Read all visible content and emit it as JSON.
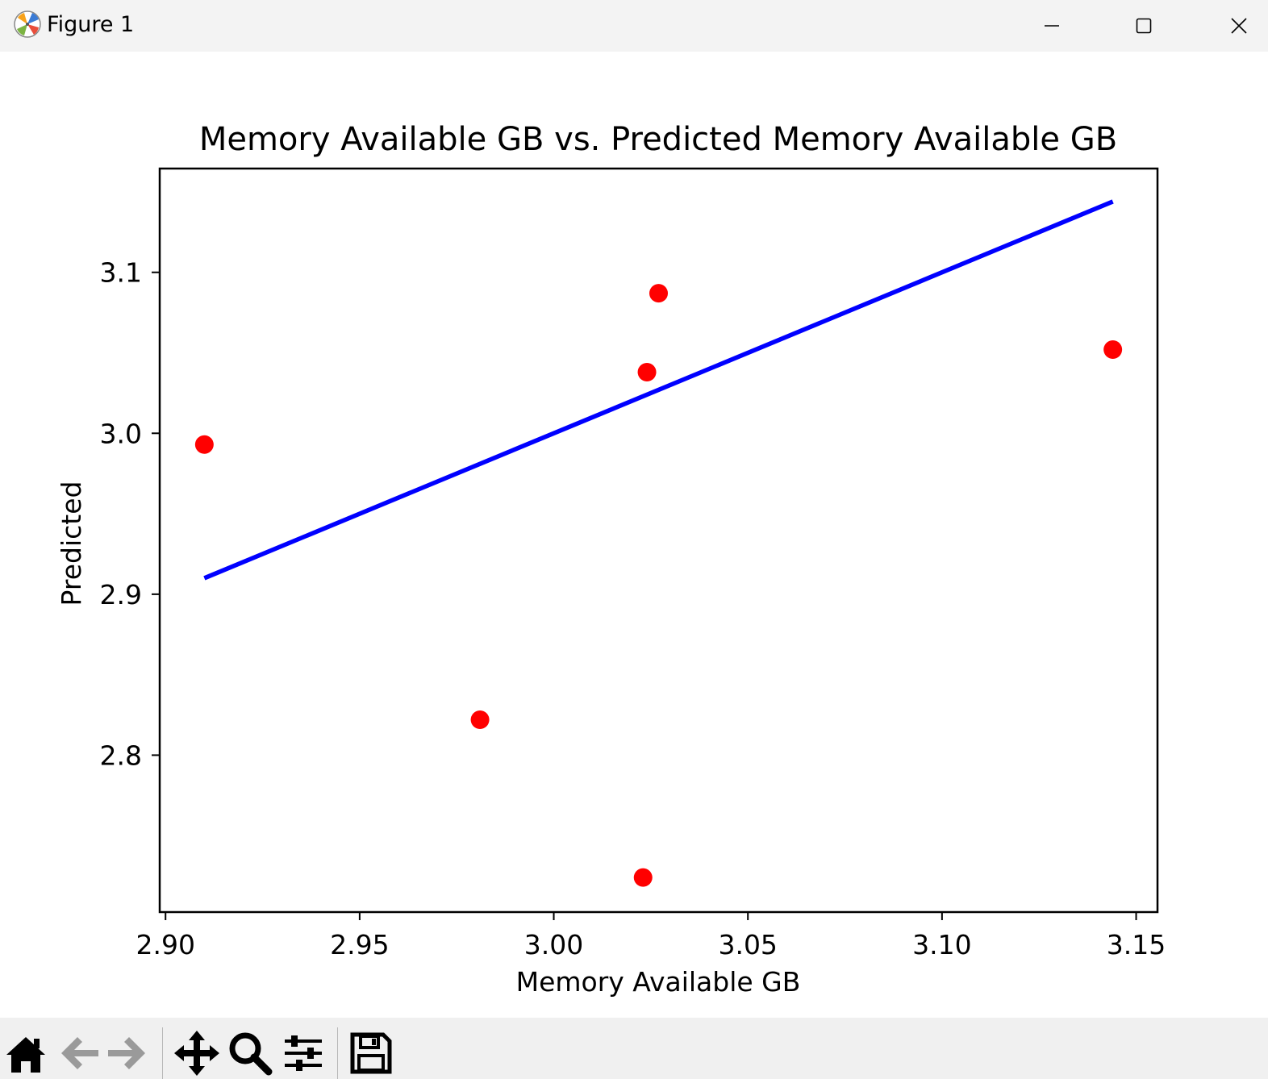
{
  "window": {
    "title": "Figure 1",
    "controls": {
      "minimize_icon": "minimize-icon",
      "maximize_icon": "maximize-icon",
      "close_icon": "close-icon"
    }
  },
  "toolbar": {
    "buttons": [
      {
        "icon": "home-icon"
      },
      {
        "icon": "back-arrow-icon"
      },
      {
        "icon": "forward-arrow-icon"
      },
      {
        "icon": "pan-move-icon"
      },
      {
        "icon": "zoom-magnifier-icon"
      },
      {
        "icon": "configure-subplots-icon"
      },
      {
        "icon": "save-floppy-icon"
      }
    ]
  },
  "chart_data": {
    "type": "scatter",
    "title": "Memory Available GB vs. Predicted Memory Available GB",
    "xlabel": "Memory Available GB",
    "ylabel": "Predicted",
    "xlim": [
      2.8985,
      3.1555
    ],
    "ylim": [
      2.7025,
      3.1645
    ],
    "x_ticks": [
      "2.90",
      "2.95",
      "3.00",
      "3.05",
      "3.10",
      "3.15"
    ],
    "y_ticks": [
      "2.8",
      "2.9",
      "3.0",
      "3.1"
    ],
    "x_tick_values": [
      2.9,
      2.95,
      3.0,
      3.05,
      3.1,
      3.15
    ],
    "y_tick_values": [
      2.8,
      2.9,
      3.0,
      3.1
    ],
    "grid": false,
    "series": [
      {
        "kind": "points",
        "color": "#ff0000",
        "points": [
          {
            "x": 2.91,
            "y": 2.993
          },
          {
            "x": 2.981,
            "y": 2.822
          },
          {
            "x": 3.023,
            "y": 2.724
          },
          {
            "x": 3.024,
            "y": 3.038
          },
          {
            "x": 3.027,
            "y": 3.087
          },
          {
            "x": 3.144,
            "y": 3.052
          }
        ]
      },
      {
        "kind": "line",
        "color": "#0000ff",
        "points": [
          {
            "x": 2.91,
            "y": 2.91
          },
          {
            "x": 3.144,
            "y": 3.144
          }
        ]
      }
    ]
  }
}
